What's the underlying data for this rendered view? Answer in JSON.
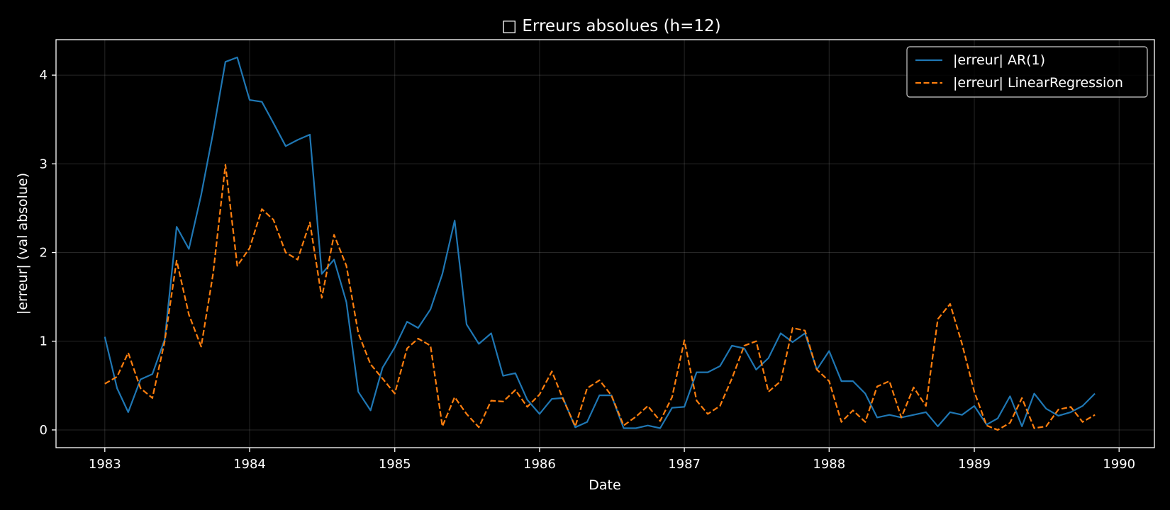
{
  "chart_data": {
    "type": "line",
    "title": "□ Erreurs absolues (h=12)",
    "xlabel": "Date",
    "ylabel": "|erreur| (val absolue)",
    "x_type": "date",
    "xlim": [
      "1982-08-31",
      "1990-03-31"
    ],
    "ylim": [
      -0.2,
      4.4
    ],
    "x_ticks": [
      "1983",
      "1984",
      "1985",
      "1986",
      "1987",
      "1988",
      "1989",
      "1990"
    ],
    "y_ticks": [
      "0",
      "1",
      "2",
      "3",
      "4"
    ],
    "grid": true,
    "legend_position": "top-right",
    "colors": {
      "background": "#000000",
      "foreground": "#ffffff",
      "ar1": "#1f77b4",
      "linreg": "#ff7f0e"
    },
    "x": [
      "1983-01",
      "1983-02",
      "1983-03",
      "1983-04",
      "1983-05",
      "1983-06",
      "1983-07",
      "1983-08",
      "1983-09",
      "1983-10",
      "1983-11",
      "1983-12",
      "1984-01",
      "1984-02",
      "1984-03",
      "1984-04",
      "1984-05",
      "1984-06",
      "1984-07",
      "1984-08",
      "1984-09",
      "1984-10",
      "1984-11",
      "1984-12",
      "1985-01",
      "1985-02",
      "1985-03",
      "1985-04",
      "1985-05",
      "1985-06",
      "1985-07",
      "1985-08",
      "1985-09",
      "1985-10",
      "1985-11",
      "1985-12",
      "1986-01",
      "1986-02",
      "1986-03",
      "1986-04",
      "1986-05",
      "1986-06",
      "1986-07",
      "1986-08",
      "1986-09",
      "1986-10",
      "1986-11",
      "1986-12",
      "1987-01",
      "1987-02",
      "1987-03",
      "1987-04",
      "1987-05",
      "1987-06",
      "1987-07",
      "1987-08",
      "1987-09",
      "1987-10",
      "1987-11",
      "1987-12",
      "1988-01",
      "1988-02",
      "1988-03",
      "1988-04",
      "1988-05",
      "1988-06",
      "1988-07",
      "1988-08",
      "1988-09",
      "1988-10",
      "1988-11",
      "1988-12",
      "1989-01",
      "1989-02",
      "1989-03",
      "1989-04",
      "1989-05",
      "1989-06",
      "1989-07",
      "1989-08",
      "1989-09",
      "1989-10",
      "1989-11"
    ],
    "series": [
      {
        "name": "|erreur| AR(1)",
        "color": "#1f77b4",
        "dash": "solid",
        "values": [
          1.05,
          0.47,
          0.2,
          0.57,
          0.63,
          1.02,
          2.29,
          2.04,
          2.65,
          3.35,
          4.15,
          4.2,
          3.72,
          3.7,
          3.46,
          3.2,
          3.27,
          3.33,
          1.76,
          1.92,
          1.44,
          0.43,
          0.22,
          0.7,
          0.93,
          1.22,
          1.15,
          1.36,
          1.76,
          2.36,
          1.19,
          0.97,
          1.09,
          0.61,
          0.64,
          0.34,
          0.18,
          0.35,
          0.36,
          0.03,
          0.09,
          0.39,
          0.39,
          0.02,
          0.02,
          0.05,
          0.02,
          0.25,
          0.26,
          0.65,
          0.65,
          0.72,
          0.95,
          0.92,
          0.68,
          0.81,
          1.09,
          0.99,
          1.09,
          0.68,
          0.89,
          0.55,
          0.55,
          0.41,
          0.14,
          0.17,
          0.14,
          0.17,
          0.2,
          0.04,
          0.2,
          0.17,
          0.27,
          0.06,
          0.13,
          0.38,
          0.04,
          0.41,
          0.24,
          0.16,
          0.2,
          0.27,
          0.41
        ]
      },
      {
        "name": "|erreur| LinearRegression",
        "color": "#ff7f0e",
        "dash": "dashed",
        "values": [
          0.52,
          0.6,
          0.87,
          0.47,
          0.36,
          1.0,
          1.91,
          1.3,
          0.94,
          1.76,
          2.99,
          1.85,
          2.05,
          2.49,
          2.37,
          2.0,
          1.92,
          2.34,
          1.49,
          2.2,
          1.85,
          1.09,
          0.74,
          0.58,
          0.41,
          0.92,
          1.03,
          0.95,
          0.04,
          0.37,
          0.18,
          0.03,
          0.33,
          0.32,
          0.45,
          0.26,
          0.4,
          0.66,
          0.35,
          0.04,
          0.47,
          0.56,
          0.39,
          0.05,
          0.15,
          0.27,
          0.1,
          0.37,
          1.01,
          0.33,
          0.18,
          0.27,
          0.58,
          0.95,
          1.0,
          0.43,
          0.55,
          1.15,
          1.12,
          0.68,
          0.55,
          0.09,
          0.22,
          0.09,
          0.49,
          0.55,
          0.14,
          0.48,
          0.27,
          1.25,
          1.42,
          0.97,
          0.43,
          0.05,
          0.0,
          0.08,
          0.36,
          0.02,
          0.04,
          0.23,
          0.26,
          0.09,
          0.17
        ]
      }
    ]
  }
}
